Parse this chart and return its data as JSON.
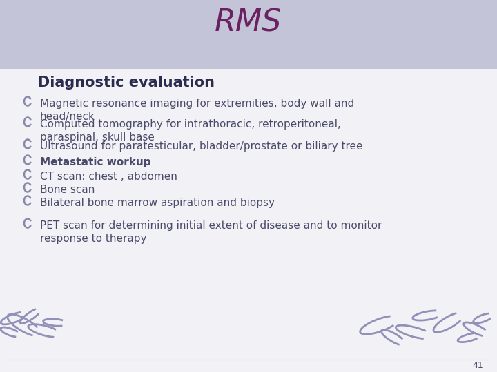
{
  "title": "RMS",
  "title_color": "#6B2060",
  "title_fontsize": 32,
  "bg_color": "#F2F2F6",
  "header_bg_color": "#C4C4D8",
  "footer_line_color": "#AAAACC",
  "slide_number": "41",
  "section_title": "Diagnostic evaluation",
  "section_title_color": "#2B2B50",
  "section_title_fontsize": 15,
  "text_color": "#4A4A6A",
  "bullet_marker_color": "#8888AA",
  "bullet_fontsize": 11,
  "bold_bullet_index": 3,
  "bullets": [
    "Magnetic resonance imaging for extremities, body wall and\nhead/neck",
    "Computed tomography for intrathoracic, retroperitoneal,\nparaspinal, skull base",
    "Ultrasound for paratesticular, bladder/prostate or biliary tree",
    "Metastatic workup",
    "CT scan: chest , abdomen",
    "Bone scan",
    "Bilateral bone marrow aspiration and biopsy",
    "PET scan for determining initial extent of disease and to monitor\nresponse to therapy"
  ],
  "wave_color": "#9090B8",
  "wave_specs_left": [
    [
      35,
      68,
      55,
      18,
      -30
    ],
    [
      20,
      78,
      40,
      12,
      20
    ],
    [
      65,
      60,
      50,
      14,
      -15
    ],
    [
      45,
      82,
      38,
      10,
      35
    ],
    [
      80,
      72,
      35,
      10,
      -5
    ],
    [
      15,
      58,
      30,
      10,
      -20
    ]
  ],
  "wave_specs_right": [
    [
      550,
      68,
      60,
      18,
      20
    ],
    [
      600,
      58,
      55,
      14,
      -15
    ],
    [
      650,
      72,
      50,
      16,
      30
    ],
    [
      690,
      62,
      40,
      12,
      -25
    ],
    [
      620,
      82,
      45,
      12,
      10
    ],
    [
      680,
      50,
      35,
      10,
      15
    ],
    [
      570,
      50,
      40,
      12,
      -30
    ],
    [
      700,
      78,
      30,
      10,
      20
    ]
  ]
}
